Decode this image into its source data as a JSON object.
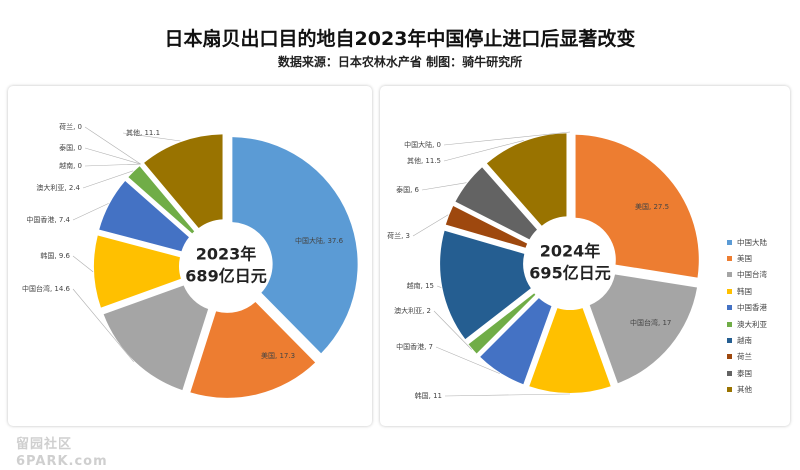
{
  "title": "日本扇贝出口目的地自2023年中国停止进口后显著改变",
  "subtitle": "数据来源：日本农林水产省    制图：骑牛研究所",
  "watermark": {
    "line1": "留园社区",
    "line2": "6PARK.com"
  },
  "colors": {
    "中国大陆": "#5B9BD5",
    "美国": "#ED7D31",
    "中国台湾": "#A5A5A5",
    "韩国": "#FFC000",
    "中国香港": "#4472C4",
    "澳大利亚": "#70AD47",
    "越南": "#255E91",
    "荷兰": "#9E480E",
    "泰国": "#636363",
    "其他": "#997300"
  },
  "chart_data": [
    {
      "type": "pie",
      "variant": "donut",
      "center_label": [
        "2023年",
        "689亿日元"
      ],
      "slices": [
        {
          "label": "中国大陆",
          "value": 37.6
        },
        {
          "label": "美国",
          "value": 17.3
        },
        {
          "label": "中国台湾",
          "value": 14.6
        },
        {
          "label": "韩国",
          "value": 9.6
        },
        {
          "label": "中国香港",
          "value": 7.4
        },
        {
          "label": "澳大利亚",
          "value": 2.4
        },
        {
          "label": "越南",
          "value": 0
        },
        {
          "label": "泰国",
          "value": 0
        },
        {
          "label": "荷兰",
          "value": 0
        },
        {
          "label": "其他",
          "value": 11.1
        }
      ],
      "data_labels": [
        "中国大陆, 37.6",
        "美国, 17.3",
        "中国台湾, 14.6",
        "韩国, 9.6",
        "中国香港, 7.4",
        "澳大利亚, 2.4",
        "越南, 0",
        "泰国, 0",
        "荷兰, 0",
        "其他, 11.1"
      ],
      "legend": "none"
    },
    {
      "type": "pie",
      "variant": "donut",
      "center_label": [
        "2024年",
        "695亿日元"
      ],
      "slices": [
        {
          "label": "中国大陆",
          "value": 0
        },
        {
          "label": "美国",
          "value": 27.5
        },
        {
          "label": "中国台湾",
          "value": 17
        },
        {
          "label": "韩国",
          "value": 11
        },
        {
          "label": "中国香港",
          "value": 7
        },
        {
          "label": "澳大利亚",
          "value": 2
        },
        {
          "label": "越南",
          "value": 15
        },
        {
          "label": "荷兰",
          "value": 3
        },
        {
          "label": "泰国",
          "value": 6
        },
        {
          "label": "其他",
          "value": 11.5
        }
      ],
      "data_labels": [
        "中国大陆, 0",
        "美国, 27.5",
        "中国台湾, 17",
        "韩国, 11",
        "中国香港, 7",
        "澳大利亚, 2",
        "越南, 15",
        "荷兰, 3",
        "泰国, 6",
        "其他, 11.5"
      ],
      "legend": "right",
      "legend_entries": [
        "中国大陆",
        "美国",
        "中国台湾",
        "韩国",
        "中国香港",
        "澳大利亚",
        "越南",
        "荷兰",
        "泰国",
        "其他"
      ]
    }
  ]
}
